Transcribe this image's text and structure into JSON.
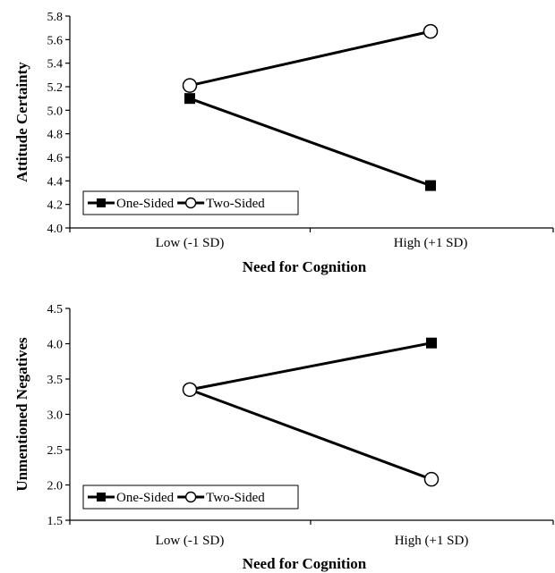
{
  "chart_data": [
    {
      "type": "line",
      "title": "",
      "xlabel": "Need for Cognition",
      "ylabel": "Attitude Certainty",
      "categories": [
        "Low (-1 SD)",
        "High (+1 SD)"
      ],
      "ylim": [
        4.0,
        5.8
      ],
      "yticks": [
        "4.0",
        "4.2",
        "4.4",
        "4.6",
        "4.8",
        "5.0",
        "5.2",
        "5.4",
        "5.6",
        "5.8"
      ],
      "grid": false,
      "legend_position": "bottom-left",
      "series": [
        {
          "name": "One-Sided",
          "marker": "filled-square",
          "values": [
            5.1,
            4.36
          ]
        },
        {
          "name": "Two-Sided",
          "marker": "open-circle",
          "values": [
            5.21,
            5.67
          ]
        }
      ]
    },
    {
      "type": "line",
      "title": "",
      "xlabel": "Need for Cognition",
      "ylabel": "Unmentioned Negatives",
      "categories": [
        "Low (-1 SD)",
        "High (+1 SD)"
      ],
      "ylim": [
        1.5,
        4.5
      ],
      "yticks": [
        "1.5",
        "2.0",
        "2.5",
        "3.0",
        "3.5",
        "4.0",
        "4.5"
      ],
      "grid": false,
      "legend_position": "bottom-left",
      "series": [
        {
          "name": "One-Sided",
          "marker": "filled-square",
          "values": [
            3.35,
            4.01
          ]
        },
        {
          "name": "Two-Sided",
          "marker": "open-circle",
          "values": [
            3.35,
            2.08
          ]
        }
      ]
    }
  ],
  "colors": {
    "line": "#000000",
    "background": "#ffffff"
  }
}
